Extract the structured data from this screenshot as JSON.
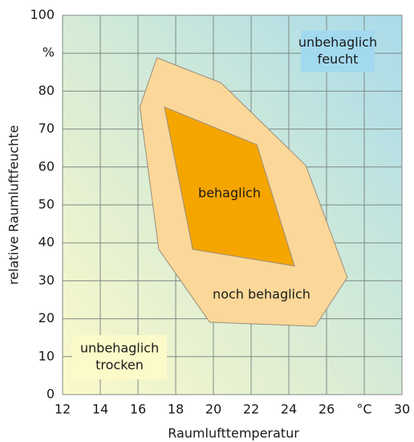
{
  "chart_data": {
    "type": "polygon",
    "xlabel": "Raumlufttemperatur",
    "ylabel": "relative Raumluftfeuchte",
    "xlim": [
      12,
      30
    ],
    "xticks": [
      12,
      14,
      16,
      18,
      20,
      22,
      24,
      26,
      {
        "value": 28,
        "label": "°C"
      },
      30
    ],
    "ylim": [
      0,
      100
    ],
    "yticks": [
      0,
      10,
      20,
      30,
      40,
      50,
      60,
      70,
      80,
      {
        "value": 90,
        "label": "%"
      },
      100
    ],
    "grid": true,
    "series": [
      {
        "name": "noch behaglich",
        "color": "#fbd899",
        "x": [
          17.0,
          20.4,
          24.9,
          27.1,
          25.4,
          19.8,
          17.1,
          16.1
        ],
        "y": [
          88.8,
          82.2,
          60.4,
          30.9,
          18.0,
          19.1,
          38.3,
          75.8
        ]
      },
      {
        "name": "behaglich",
        "color": "#f5a500",
        "x": [
          17.4,
          22.3,
          24.3,
          18.9
        ],
        "y": [
          75.8,
          65.9,
          33.9,
          38.3
        ]
      }
    ],
    "annotations": [
      {
        "lines": [
          "unbehaglich",
          "feucht"
        ],
        "color": "#a3d9ef"
      },
      {
        "lines": [
          "unbehaglich",
          "trocken"
        ],
        "color": "#fdfac9"
      }
    ]
  }
}
